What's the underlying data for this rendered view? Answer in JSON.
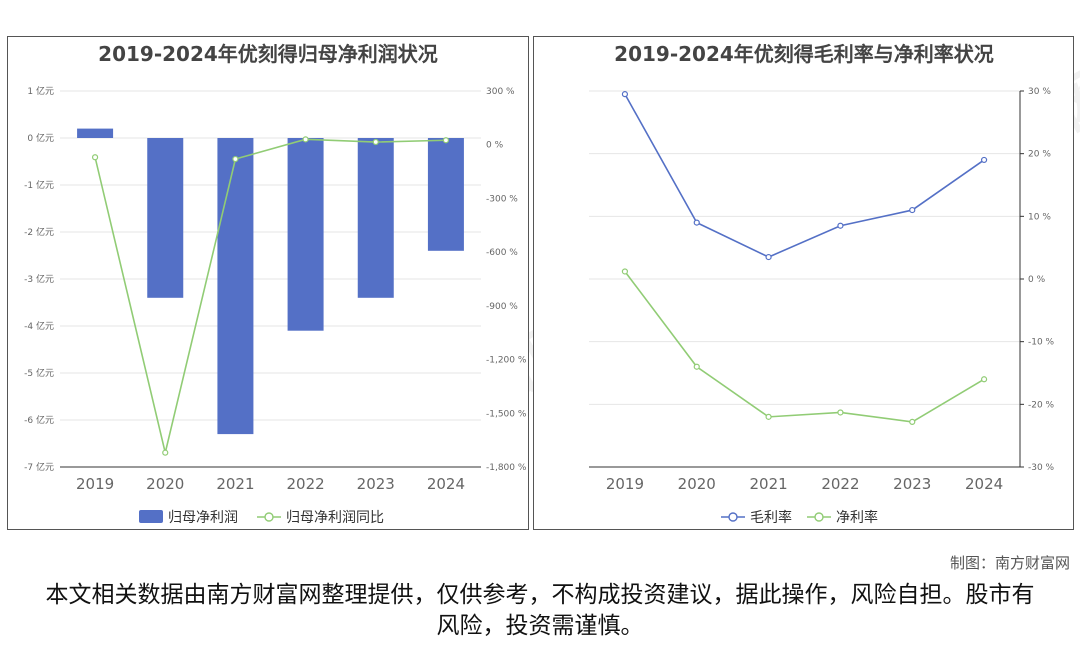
{
  "colors": {
    "bar": "#5470c6",
    "line_green": "#91cc75",
    "line_blue": "#5470c6",
    "grid": "#e6e6e6",
    "axis_text": "#666666"
  },
  "watermark": {
    "name": "南方财富网",
    "url": "Southmoney.com"
  },
  "credit": "制图：南方财富网",
  "disclaimer": "本文相关数据由南方财富网整理提供，仅供参考，不构成投资建议，据此操作，风险自担。股市有风险，投资需谨慎。",
  "chart_data": [
    {
      "type": "bar",
      "title": "2019-2024年优刻得归母净利润状况",
      "categories": [
        "2019",
        "2020",
        "2021",
        "2022",
        "2023",
        "2024"
      ],
      "y_left": {
        "ticks": [
          "1 亿元",
          "0 亿元",
          "-1 亿元",
          "-2 亿元",
          "-3 亿元",
          "-4 亿元",
          "-5 亿元",
          "-6 亿元",
          "-7 亿元"
        ],
        "min": -7,
        "max": 1
      },
      "y_right": {
        "ticks": [
          "300 %",
          "0 %",
          "-300 %",
          "-600 %",
          "-900 %",
          "-1,200 %",
          "-1,500 %",
          "-1,800 %"
        ],
        "min": -1800,
        "max": 300
      },
      "grid": true,
      "legend_position": "bottom",
      "series": [
        {
          "name": "归母净利润",
          "type": "bar",
          "axis": "left",
          "values": [
            0.2,
            -3.4,
            -6.3,
            -4.1,
            -3.4,
            -2.4
          ]
        },
        {
          "name": "归母净利润同比",
          "type": "line",
          "axis": "right",
          "values": [
            -70,
            -1720,
            -80,
            30,
            15,
            25
          ]
        }
      ]
    },
    {
      "type": "line",
      "title": "2019-2024年优刻得毛利率与净利率状况",
      "categories": [
        "2019",
        "2020",
        "2021",
        "2022",
        "2023",
        "2024"
      ],
      "y_right": {
        "ticks": [
          "30 %",
          "20 %",
          "10 %",
          "0 %",
          "-10 %",
          "-20 %",
          "-30 %"
        ],
        "min": -30,
        "max": 30
      },
      "grid": true,
      "legend_position": "bottom",
      "series": [
        {
          "name": "毛利率",
          "values": [
            29.5,
            9,
            3.5,
            8.5,
            11,
            19
          ]
        },
        {
          "name": "净利率",
          "values": [
            1.2,
            -14,
            -22,
            -21.3,
            -22.8,
            -16
          ]
        }
      ]
    }
  ]
}
